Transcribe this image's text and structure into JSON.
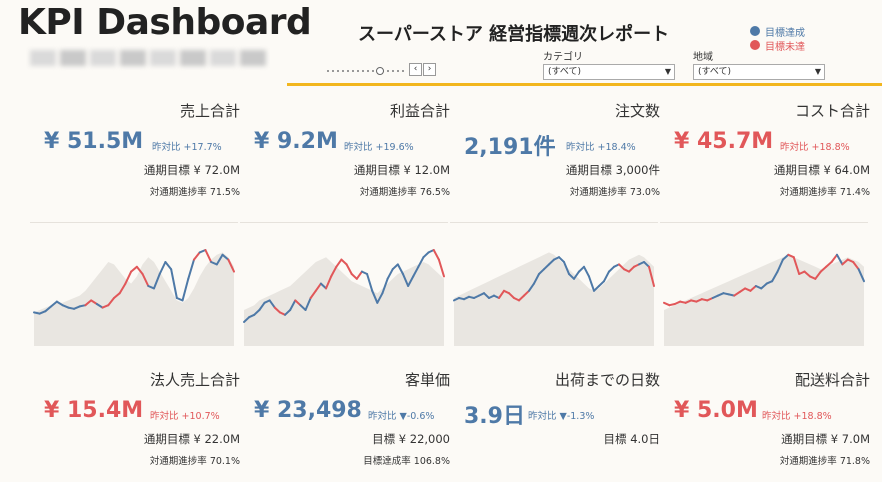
{
  "header": {
    "title": "KPI Dashboard",
    "subtitle": "スーパーストア 経営指標週次レポート"
  },
  "colors": {
    "achieved": "#4e79a7",
    "not_achieved": "#e15759",
    "accent": "#f2b61e"
  },
  "legend": [
    {
      "label": "目標達成",
      "color": "#4e79a7"
    },
    {
      "label": "目標未達",
      "color": "#e15759"
    }
  ],
  "nav": {
    "prev": "‹",
    "next": "›",
    "slider_position": 0.62
  },
  "filters": [
    {
      "label": "カテゴリ",
      "value": "(すべて)"
    },
    {
      "label": "地域",
      "value": "(すべて)"
    }
  ],
  "kpis": [
    {
      "title": "売上合計",
      "value": "¥ 51.5M",
      "yoy": "昨対比 +17.7%",
      "target": "通期目標 ¥ 72.0M",
      "rate": "対通期進捗率 71.5%",
      "status": "achieved"
    },
    {
      "title": "利益合計",
      "value": "¥ 9.2M",
      "yoy": "昨対比 +19.6%",
      "target": "通期目標 ¥ 12.0M",
      "rate": "対通期進捗率 76.5%",
      "status": "achieved"
    },
    {
      "title": "注文数",
      "value": "2,191件",
      "yoy": "昨対比 +18.4%",
      "target": "通期目標 3,000件",
      "rate": "対通期進捗率 73.0%",
      "status": "achieved"
    },
    {
      "title": "コスト合計",
      "value": "¥ 45.7M",
      "yoy": "昨対比 +18.8%",
      "target": "通期目標 ¥ 64.0M",
      "rate": "対通期進捗率 71.4%",
      "status": "not_achieved"
    },
    {
      "title": "法人売上合計",
      "value": "¥ 15.4M",
      "yoy": "昨対比 +10.7%",
      "target": "通期目標 ¥ 22.0M",
      "rate": "対通期進捗率 70.1%",
      "status": "not_achieved"
    },
    {
      "title": "客単価",
      "value": "¥ 23,498",
      "yoy": "昨対比 ▼-0.6%",
      "target": "目標 ¥ 22,000",
      "rate": "目標達成率 106.8%",
      "status": "achieved"
    },
    {
      "title": "出荷までの日数",
      "value": "3.9日",
      "yoy": "昨対比 ▼-1.3%",
      "target": "目標 4.0日",
      "rate": "",
      "status": "achieved"
    },
    {
      "title": "配送料合計",
      "value": "¥ 5.0M",
      "yoy": "昨対比 +18.8%",
      "target": "通期目標 ¥ 7.0M",
      "rate": "対通期進捗率 71.8%",
      "status": "not_achieved"
    }
  ],
  "sparklines": [
    {
      "values": [
        28,
        27,
        29,
        33,
        37,
        34,
        32,
        31,
        33,
        34,
        38,
        35,
        32,
        34,
        40,
        44,
        52,
        62,
        66,
        60,
        50,
        48,
        60,
        70,
        64,
        40,
        38,
        56,
        72,
        78,
        80,
        70,
        68,
        76,
        72,
        62
      ],
      "status": [
        0,
        0,
        0,
        0,
        0,
        0,
        0,
        0,
        0,
        0,
        1,
        1,
        0,
        1,
        1,
        1,
        1,
        1,
        1,
        1,
        1,
        0,
        0,
        0,
        0,
        0,
        0,
        0,
        0,
        1,
        0,
        1,
        0,
        0,
        0,
        1
      ],
      "bg": [
        28,
        30,
        32,
        34,
        36,
        36,
        38,
        40,
        42,
        46,
        52,
        58,
        64,
        70,
        68,
        62,
        56,
        52,
        58,
        68,
        74,
        70,
        62,
        54,
        46,
        38,
        36,
        40,
        48,
        58,
        66,
        72,
        76,
        78,
        74,
        66
      ]
    },
    {
      "values": [
        20,
        24,
        26,
        30,
        36,
        38,
        32,
        28,
        26,
        30,
        38,
        34,
        30,
        40,
        46,
        52,
        48,
        58,
        66,
        72,
        68,
        60,
        56,
        62,
        60,
        46,
        36,
        44,
        56,
        64,
        68,
        60,
        50,
        58,
        66,
        74,
        78,
        80,
        72,
        58
      ],
      "status": [
        0,
        0,
        0,
        0,
        0,
        0,
        0,
        1,
        1,
        0,
        0,
        1,
        0,
        0,
        1,
        1,
        0,
        1,
        1,
        1,
        1,
        1,
        1,
        1,
        0,
        0,
        0,
        0,
        0,
        0,
        0,
        0,
        0,
        0,
        0,
        0,
        0,
        0,
        1,
        1
      ],
      "bg": [
        30,
        32,
        34,
        38,
        40,
        42,
        44,
        46,
        48,
        50,
        54,
        58,
        62,
        66,
        70,
        72,
        74,
        70,
        66,
        62,
        58,
        54,
        52,
        50,
        48,
        46,
        44,
        48,
        52,
        56,
        60,
        62,
        64,
        66,
        68,
        70,
        68,
        64,
        60,
        56
      ]
    },
    {
      "values": [
        38,
        40,
        39,
        41,
        40,
        42,
        44,
        40,
        42,
        40,
        46,
        44,
        40,
        38,
        42,
        46,
        52,
        60,
        64,
        68,
        72,
        74,
        70,
        60,
        56,
        62,
        66,
        58,
        46,
        50,
        54,
        62,
        66,
        68,
        64,
        62,
        66,
        68,
        70,
        66,
        50
      ],
      "status": [
        0,
        0,
        0,
        0,
        0,
        0,
        0,
        0,
        0,
        0,
        1,
        1,
        1,
        1,
        1,
        1,
        0,
        0,
        0,
        0,
        0,
        0,
        0,
        0,
        0,
        0,
        0,
        0,
        0,
        0,
        0,
        0,
        0,
        0,
        1,
        1,
        1,
        1,
        0,
        0,
        1
      ],
      "bg": [
        40,
        42,
        44,
        46,
        48,
        50,
        52,
        54,
        56,
        58,
        60,
        62,
        64,
        66,
        68,
        70,
        72,
        74,
        76,
        78,
        76,
        72,
        68,
        64,
        60,
        56,
        52,
        48,
        46,
        48,
        52,
        56,
        60,
        64,
        68,
        72,
        74,
        76,
        74,
        70,
        66
      ]
    },
    {
      "values": [
        36,
        34,
        35,
        37,
        36,
        38,
        37,
        39,
        38,
        40,
        42,
        44,
        43,
        42,
        45,
        48,
        46,
        50,
        48,
        52,
        54,
        62,
        72,
        76,
        74,
        60,
        62,
        58,
        56,
        62,
        66,
        70,
        76,
        68,
        72,
        70,
        64,
        54
      ],
      "status": [
        1,
        1,
        1,
        1,
        1,
        1,
        1,
        1,
        1,
        1,
        0,
        0,
        0,
        0,
        1,
        1,
        1,
        1,
        0,
        0,
        0,
        0,
        0,
        0,
        1,
        1,
        1,
        1,
        1,
        1,
        1,
        1,
        1,
        0,
        1,
        1,
        1,
        0
      ],
      "bg": [
        30,
        32,
        34,
        36,
        38,
        40,
        42,
        44,
        46,
        48,
        50,
        52,
        54,
        56,
        58,
        60,
        62,
        64,
        66,
        68,
        70,
        72,
        74,
        76,
        74,
        72,
        70,
        68,
        66,
        64,
        66,
        68,
        70,
        72,
        74,
        72,
        70,
        66
      ]
    }
  ]
}
